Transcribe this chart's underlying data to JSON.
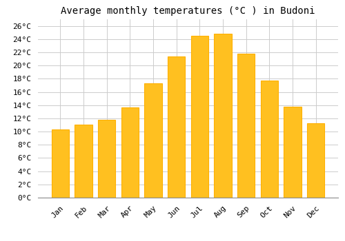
{
  "title": "Average monthly temperatures (°C ) in Budoni",
  "months": [
    "Jan",
    "Feb",
    "Mar",
    "Apr",
    "May",
    "Jun",
    "Jul",
    "Aug",
    "Sep",
    "Oct",
    "Nov",
    "Dec"
  ],
  "values": [
    10.3,
    11.0,
    11.8,
    13.7,
    17.3,
    21.4,
    24.5,
    24.8,
    21.8,
    17.7,
    13.8,
    11.3
  ],
  "bar_color": "#FFC020",
  "bar_edge_color": "#FFB000",
  "background_color": "#FFFFFF",
  "grid_color": "#CCCCCC",
  "ylim": [
    0,
    27
  ],
  "ytick_step": 2,
  "title_fontsize": 10,
  "tick_fontsize": 8,
  "font_family": "monospace",
  "bar_width": 0.75
}
